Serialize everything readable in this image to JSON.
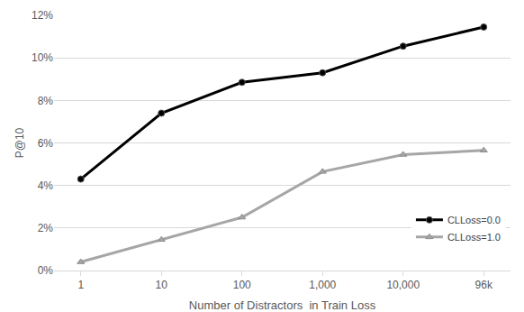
{
  "chart_data": {
    "type": "line",
    "x_label": "Number of Distractors  in Train Loss",
    "y_label": "P@10",
    "categories": [
      "1",
      "10",
      "100",
      "1,000",
      "10,000",
      "96k"
    ],
    "series": [
      {
        "name": "CLLoss=0.0",
        "color": "#000000",
        "marker": "circle",
        "line_style": "solid",
        "values": [
          4.3,
          7.4,
          8.85,
          9.3,
          10.55,
          11.45
        ]
      },
      {
        "name": "CLLoss=1.0",
        "color": "#a6a6a6",
        "marker": "triangle-up",
        "line_style": "solid",
        "values": [
          0.4,
          1.45,
          2.5,
          4.65,
          5.45,
          5.65
        ]
      }
    ],
    "ylim": [
      0,
      12
    ],
    "yticks": [
      {
        "value": 0,
        "label": "0%"
      },
      {
        "value": 2,
        "label": "2%"
      },
      {
        "value": 4,
        "label": "4%"
      },
      {
        "value": 6,
        "label": "6%"
      },
      {
        "value": 8,
        "label": "8%"
      },
      {
        "value": 10,
        "label": "10%"
      },
      {
        "value": 12,
        "label": "12%"
      }
    ],
    "grid": true,
    "legend": "lower right"
  }
}
